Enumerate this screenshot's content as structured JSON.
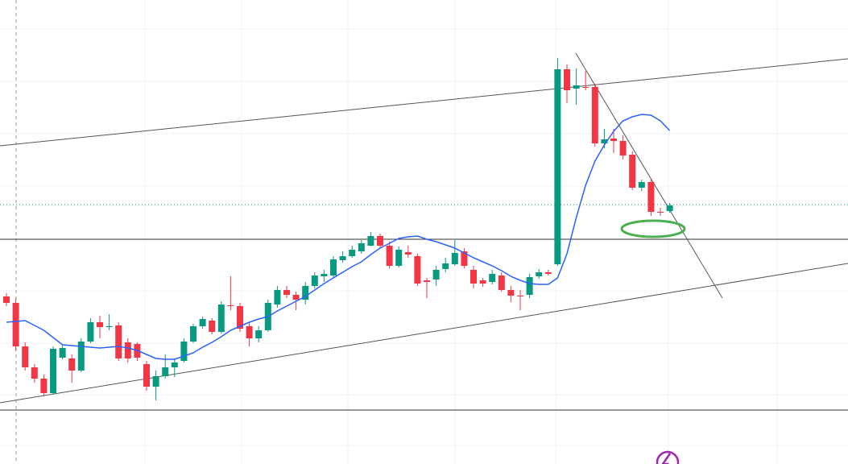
{
  "chart_data": {
    "type": "candlestick",
    "up_color": "#089981",
    "down_color": "#f23645",
    "ylim": [
      0,
      576
    ],
    "open": [
      208,
      200,
      146,
      120,
      106,
      88,
      132,
      131,
      116,
      152,
      176,
      170,
      172,
      151,
      149,
      124,
      96,
      109,
      120,
      128,
      152,
      171,
      178,
      164,
      197,
      196,
      171,
      156,
      166,
      198,
      216,
      210,
      204,
      221,
      233,
      234,
      253,
      258,
      264,
      271,
      283,
      271,
      246,
      263,
      258,
      228,
      229,
      242,
      248,
      264,
      241,
      228,
      226,
      234,
      216,
      209,
      210,
      233,
      238,
      248,
      490,
      466,
      468,
      468,
      398,
      404,
      401,
      384,
      343,
      350,
      313,
      314
    ],
    "high": [
      212,
      206,
      151,
      124,
      111,
      146,
      148,
      136,
      156,
      181,
      184,
      186,
      176,
      156,
      151,
      128,
      116,
      136,
      131,
      156,
      174,
      183,
      181,
      202,
      233,
      200,
      176,
      171,
      204,
      221,
      221,
      214,
      226,
      238,
      241,
      258,
      264,
      271,
      278,
      288,
      286,
      276,
      270,
      271,
      261,
      231,
      246,
      256,
      278,
      268,
      246,
      231,
      241,
      238,
      221,
      216,
      236,
      242,
      241,
      504,
      496,
      491,
      488,
      472,
      416,
      416,
      408,
      388,
      353,
      354,
      318,
      324
    ],
    "low": [
      196,
      141,
      116,
      101,
      84,
      86,
      130,
      101,
      114,
      150,
      156,
      166,
      128,
      126,
      128,
      91,
      79,
      106,
      108,
      126,
      150,
      168,
      161,
      162,
      191,
      164,
      146,
      151,
      164,
      194,
      206,
      191,
      198,
      218,
      226,
      231,
      250,
      256,
      261,
      270,
      268,
      243,
      244,
      256,
      221,
      206,
      221,
      238,
      246,
      243,
      218,
      220,
      223,
      214,
      201,
      191,
      206,
      230,
      234,
      246,
      448,
      446,
      464,
      394,
      392,
      386,
      378,
      340,
      339,
      308,
      308,
      312
    ],
    "close": [
      200,
      146,
      120,
      106,
      88,
      143,
      144,
      116,
      152,
      176,
      170,
      171,
      131,
      131,
      132,
      96,
      109,
      120,
      126,
      152,
      171,
      180,
      164,
      198,
      196,
      168,
      156,
      166,
      200,
      216,
      210,
      204,
      221,
      234,
      236,
      254,
      258,
      266,
      274,
      283,
      271,
      246,
      266,
      260,
      224,
      226,
      241,
      249,
      262,
      246,
      224,
      224,
      236,
      216,
      209,
      208,
      232,
      238,
      236,
      490,
      464,
      470,
      467,
      398,
      403,
      401,
      383,
      343,
      350,
      313,
      312,
      321
    ],
    "ma": {
      "color": "#2962ff",
      "values": [
        176,
        177,
        178,
        172,
        166,
        157,
        148,
        147,
        146,
        145,
        144,
        145,
        146,
        144,
        141,
        136,
        131,
        130,
        130,
        134,
        138,
        145,
        151,
        158,
        166,
        171,
        176,
        180,
        183,
        190,
        196,
        202,
        208,
        216,
        224,
        231,
        238,
        245,
        251,
        260,
        268,
        274,
        280,
        282,
        283,
        279,
        276,
        272,
        268,
        262,
        256,
        251,
        246,
        240,
        233,
        228,
        224,
        223,
        223,
        231,
        261,
        306,
        346,
        376,
        396,
        413,
        426,
        431,
        434,
        433,
        426,
        414
      ]
    }
  }
}
